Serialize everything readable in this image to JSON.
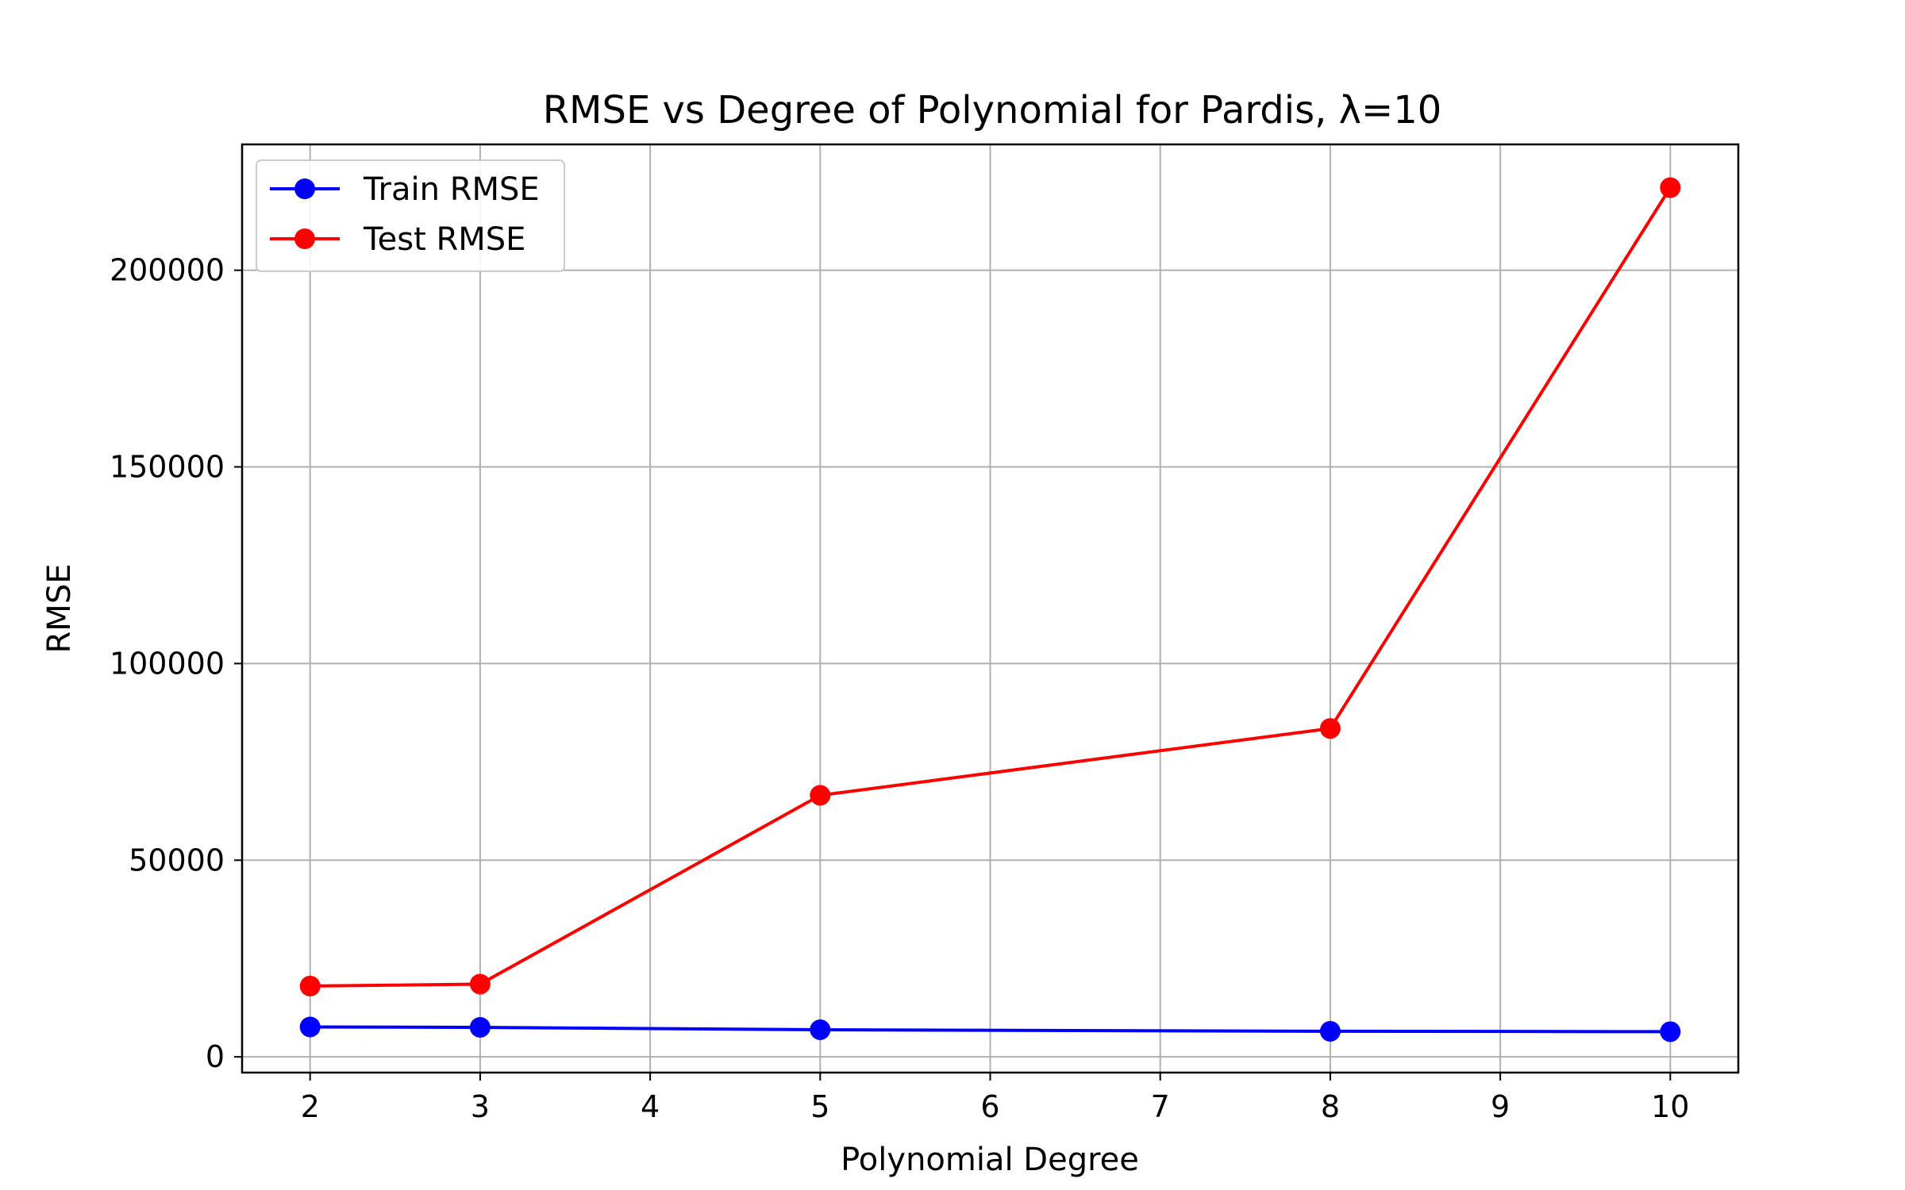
{
  "chart_data": {
    "type": "line",
    "title": "RMSE vs Degree of Polynomial for Pardis, λ=10",
    "xlabel": "Polynomial Degree",
    "ylabel": "RMSE",
    "x": [
      2,
      3,
      5,
      8,
      10
    ],
    "xticks": [
      "2",
      "3",
      "4",
      "5",
      "6",
      "7",
      "8",
      "9",
      "10"
    ],
    "yticks": [
      "0",
      "50000",
      "100000",
      "150000",
      "200000"
    ],
    "xlim": [
      1.6,
      10.4
    ],
    "ylim": [
      -4000,
      232000
    ],
    "grid": true,
    "legend_position": "upper-left",
    "series": [
      {
        "name": "Train RMSE",
        "color": "#0000ff",
        "values": [
          7600,
          7500,
          6900,
          6500,
          6400
        ]
      },
      {
        "name": "Test RMSE",
        "color": "#ff0000",
        "values": [
          18000,
          18500,
          66500,
          83500,
          221000
        ]
      }
    ]
  }
}
